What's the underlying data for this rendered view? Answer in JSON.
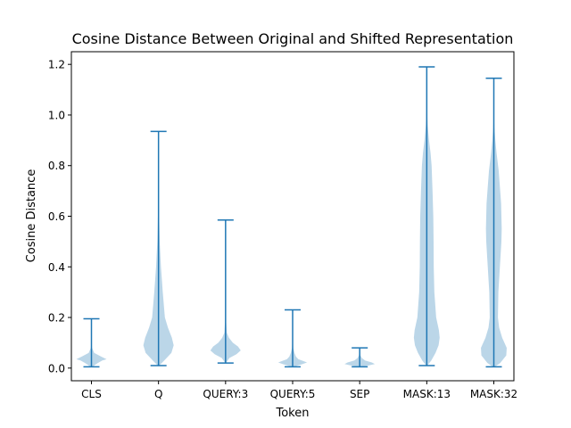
{
  "chart_data": {
    "type": "violin",
    "title": "Cosine Distance Between Original and Shifted Representation",
    "xlabel": "Token",
    "ylabel": "Cosine Distance",
    "categories": [
      "CLS",
      "Q",
      "QUERY:3",
      "QUERY:5",
      "SEP",
      "MASK:13",
      "MASK:32"
    ],
    "ylim": [
      -0.05,
      1.25
    ],
    "yticks": [
      0.0,
      0.2,
      0.4,
      0.6,
      0.8,
      1.0,
      1.2
    ],
    "ytick_labels": [
      "0.0",
      "0.2",
      "0.4",
      "0.6",
      "0.8",
      "1.0",
      "1.2"
    ],
    "grid": false,
    "colors": {
      "body": "#1f77b4",
      "body_opacity": 0.3,
      "lines": "#1f77b4"
    },
    "violins": [
      {
        "min": 0.005,
        "max": 0.195,
        "profile": [
          [
            0.005,
            0.1
          ],
          [
            0.012,
            0.22
          ],
          [
            0.02,
            0.42
          ],
          [
            0.03,
            0.72
          ],
          [
            0.035,
            1.0
          ],
          [
            0.045,
            0.65
          ],
          [
            0.06,
            0.18
          ],
          [
            0.08,
            0.04
          ],
          [
            0.1,
            0.015
          ],
          [
            0.195,
            0.0
          ]
        ]
      },
      {
        "min": 0.01,
        "max": 0.935,
        "profile": [
          [
            0.01,
            0.05
          ],
          [
            0.03,
            0.38
          ],
          [
            0.06,
            0.85
          ],
          [
            0.09,
            1.0
          ],
          [
            0.12,
            0.88
          ],
          [
            0.16,
            0.62
          ],
          [
            0.2,
            0.42
          ],
          [
            0.3,
            0.28
          ],
          [
            0.4,
            0.16
          ],
          [
            0.5,
            0.08
          ],
          [
            0.6,
            0.04
          ],
          [
            0.7,
            0.025
          ],
          [
            0.8,
            0.012
          ],
          [
            0.935,
            0.0
          ]
        ]
      },
      {
        "min": 0.02,
        "max": 0.585,
        "profile": [
          [
            0.02,
            0.02
          ],
          [
            0.04,
            0.25
          ],
          [
            0.055,
            0.72
          ],
          [
            0.07,
            1.0
          ],
          [
            0.085,
            0.82
          ],
          [
            0.1,
            0.48
          ],
          [
            0.12,
            0.22
          ],
          [
            0.14,
            0.08
          ],
          [
            0.2,
            0.02
          ],
          [
            0.585,
            0.0
          ]
        ]
      },
      {
        "min": 0.005,
        "max": 0.23,
        "profile": [
          [
            0.005,
            0.12
          ],
          [
            0.01,
            0.32
          ],
          [
            0.015,
            0.62
          ],
          [
            0.022,
            0.95
          ],
          [
            0.028,
            0.7
          ],
          [
            0.035,
            0.38
          ],
          [
            0.045,
            0.22
          ],
          [
            0.06,
            0.12
          ],
          [
            0.08,
            0.04
          ],
          [
            0.12,
            0.01
          ],
          [
            0.23,
            0.0
          ]
        ]
      },
      {
        "min": 0.005,
        "max": 0.08,
        "profile": [
          [
            0.005,
            0.18
          ],
          [
            0.01,
            0.55
          ],
          [
            0.016,
            1.0
          ],
          [
            0.022,
            0.8
          ],
          [
            0.03,
            0.35
          ],
          [
            0.04,
            0.14
          ],
          [
            0.05,
            0.05
          ],
          [
            0.08,
            0.0
          ]
        ]
      },
      {
        "min": 0.01,
        "max": 1.19,
        "profile": [
          [
            0.01,
            0.04
          ],
          [
            0.03,
            0.3
          ],
          [
            0.06,
            0.58
          ],
          [
            0.09,
            0.78
          ],
          [
            0.12,
            0.85
          ],
          [
            0.15,
            0.8
          ],
          [
            0.2,
            0.62
          ],
          [
            0.3,
            0.5
          ],
          [
            0.4,
            0.46
          ],
          [
            0.5,
            0.45
          ],
          [
            0.6,
            0.43
          ],
          [
            0.7,
            0.38
          ],
          [
            0.8,
            0.32
          ],
          [
            0.85,
            0.25
          ],
          [
            0.9,
            0.15
          ],
          [
            0.96,
            0.06
          ],
          [
            1.02,
            0.02
          ],
          [
            1.1,
            0.008
          ],
          [
            1.19,
            0.0
          ]
        ]
      },
      {
        "min": 0.005,
        "max": 1.145,
        "profile": [
          [
            0.005,
            0.06
          ],
          [
            0.02,
            0.42
          ],
          [
            0.05,
            0.82
          ],
          [
            0.08,
            0.85
          ],
          [
            0.12,
            0.55
          ],
          [
            0.16,
            0.35
          ],
          [
            0.2,
            0.27
          ],
          [
            0.3,
            0.3
          ],
          [
            0.4,
            0.4
          ],
          [
            0.5,
            0.5
          ],
          [
            0.55,
            0.52
          ],
          [
            0.6,
            0.5
          ],
          [
            0.65,
            0.48
          ],
          [
            0.7,
            0.42
          ],
          [
            0.78,
            0.32
          ],
          [
            0.85,
            0.18
          ],
          [
            0.9,
            0.1
          ],
          [
            0.95,
            0.04
          ],
          [
            1.0,
            0.015
          ],
          [
            1.145,
            0.0
          ]
        ]
      }
    ]
  }
}
